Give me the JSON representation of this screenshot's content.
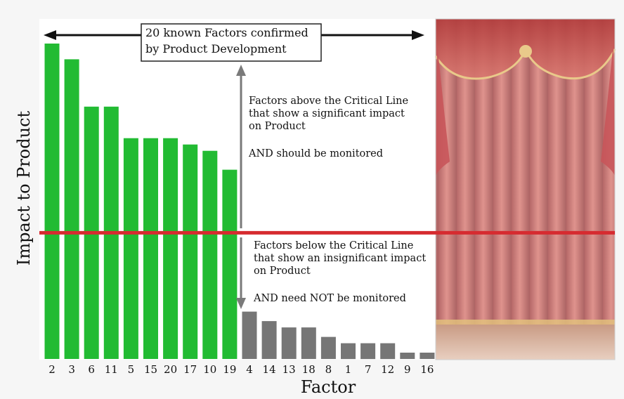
{
  "chart_data": {
    "type": "bar",
    "xlabel": "Factor",
    "ylabel": "Impact  to  Product",
    "categories": [
      "2",
      "3",
      "6",
      "11",
      "5",
      "15",
      "20",
      "17",
      "10",
      "19",
      "4",
      "14",
      "13",
      "18",
      "8",
      "1",
      "7",
      "12",
      "9",
      "16"
    ],
    "values": [
      100,
      95,
      80,
      80,
      70,
      70,
      70,
      68,
      66,
      60,
      15,
      12,
      10,
      10,
      7,
      5,
      5,
      5,
      2,
      2
    ],
    "ylim": [
      0,
      100
    ],
    "critical_line": 40,
    "series_colors": {
      "above": "#22bb33",
      "below": "#767676"
    },
    "critical_line_color": "#d62b30",
    "annotations": {
      "header_box": [
        "20 known Factors confirmed",
        "by Product Development"
      ],
      "above": [
        "Factors above the Critical Line",
        "that show a significant impact",
        "on Product",
        "",
        "AND should be monitored"
      ],
      "below": [
        "Factors below the Critical Line",
        "that show an insignificant impact",
        "on Product",
        "",
        "AND need NOT be monitored"
      ]
    }
  }
}
